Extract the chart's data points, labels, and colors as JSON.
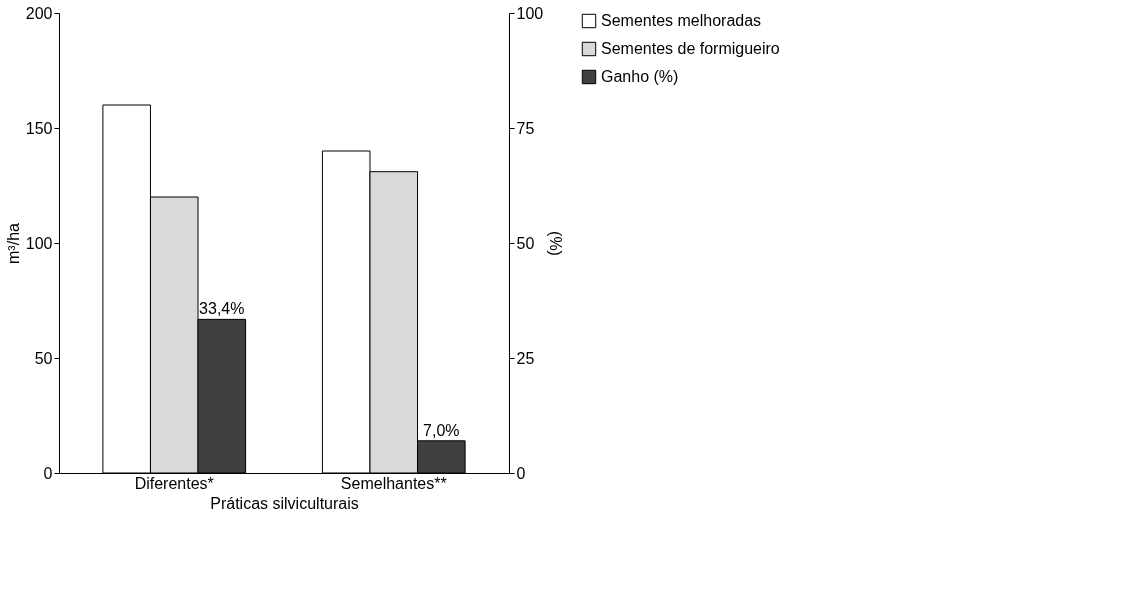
{
  "chart_data": {
    "type": "bar",
    "xlabel": "Práticas silviculturais",
    "ylabel": "m³/ha",
    "y2label": "(%)",
    "categories": [
      "Diferentes*",
      "Semelhantes**"
    ],
    "series": [
      {
        "name": "Sementes melhoradas",
        "color": "#ffffff",
        "values": [
          160,
          140
        ]
      },
      {
        "name": "Sementes de formigueiro",
        "color": "#d9d9d9",
        "values": [
          120,
          131
        ]
      },
      {
        "name": "Ganho (%)",
        "color": "#404040",
        "values": [
          33.4,
          7.0
        ],
        "axis": "y2",
        "value_labels": [
          "33,4%",
          "7,0%"
        ]
      }
    ],
    "ylim": [
      0,
      200
    ],
    "yticks": [
      0,
      50,
      100,
      150,
      200
    ],
    "y2lim": [
      0,
      100
    ],
    "y2ticks": [
      0,
      25,
      50,
      75,
      100
    ],
    "grid": false,
    "legend": "right"
  }
}
